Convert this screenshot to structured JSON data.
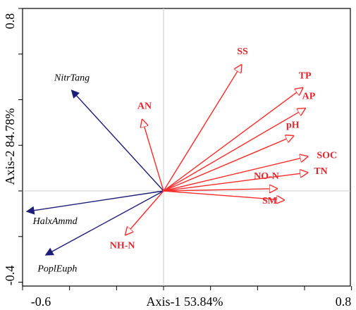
{
  "chart_data": {
    "type": "scatter",
    "subtype": "biplot",
    "title": "",
    "xlabel": "Axis-1 53.84%",
    "ylabel": "Axis-2 84.78%",
    "xlim": [
      -0.6,
      0.8
    ],
    "ylim": [
      -0.4,
      0.8
    ],
    "x_tick_labels": [
      "-0.6",
      "0.8"
    ],
    "y_tick_labels": [
      "-0.4",
      "0.8"
    ],
    "grid": false,
    "legend": "none",
    "colors": {
      "species": "#1d1d7a",
      "environment": "#ff2a2a"
    },
    "series": [
      {
        "name": "",
        "group": "species",
        "points": [
          {
            "label": "NitrTang",
            "x": -0.39,
            "y": 0.44
          },
          {
            "label": "HalxAmmd",
            "x": -0.58,
            "y": -0.09
          },
          {
            "label": "PoplEuph",
            "x": -0.5,
            "y": -0.28
          }
        ]
      },
      {
        "name": "",
        "group": "environment",
        "points": [
          {
            "label": "SS",
            "x": 0.33,
            "y": 0.55
          },
          {
            "label": "TP",
            "x": 0.59,
            "y": 0.45
          },
          {
            "label": "AP",
            "x": 0.6,
            "y": 0.36
          },
          {
            "label": "AN",
            "x": -0.09,
            "y": 0.31
          },
          {
            "label": "pH",
            "x": 0.55,
            "y": 0.24
          },
          {
            "label": "SOC",
            "x": 0.61,
            "y": 0.15
          },
          {
            "label": "TN",
            "x": 0.61,
            "y": 0.08
          },
          {
            "label": "NO-N",
            "x": 0.48,
            "y": 0.01
          },
          {
            "label": "SM",
            "x": 0.51,
            "y": -0.04
          },
          {
            "label": "NH-N",
            "x": -0.16,
            "y": -0.19
          }
        ]
      }
    ]
  }
}
